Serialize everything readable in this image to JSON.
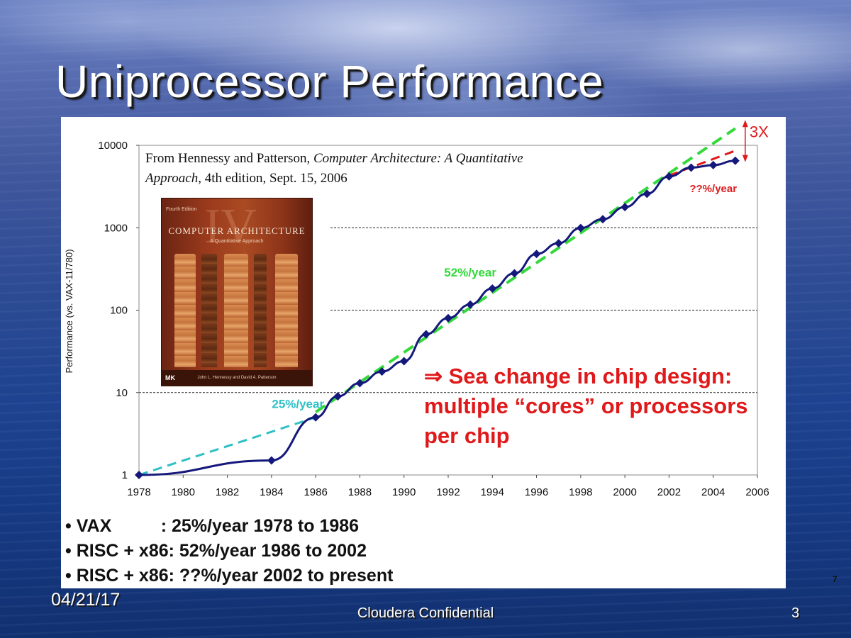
{
  "slide": {
    "title": "Uniprocessor Performance",
    "footer_date": "04/21/17",
    "footer_center": "Cloudera Confidential",
    "slide_number": "3",
    "image_page_number": "7"
  },
  "source_note": {
    "prefix": "From Hennessy and Patterson, ",
    "book_title": "Computer Architecture: A Quantitative Approach",
    "suffix": ", 4th edition, Sept. 15, 2006"
  },
  "book_cover": {
    "edition_label": "Fourth Edition",
    "title": "COMPUTER ARCHITECTURE",
    "subtitle": "A Quantitative Approach",
    "authors": "John L. Hennessy and David A. Patterson",
    "roman_numeral": "IV",
    "publisher_mark": "MK"
  },
  "sea_change": {
    "arrow": "⇒",
    "text": "Sea change in chip design: multiple “cores” or processors per chip"
  },
  "bullets": [
    "• VAX          : 25%/year 1978 to 1986",
    "• RISC + x86: 52%/year 1986 to 2002",
    "• RISC + x86: ??%/year 2002 to present"
  ],
  "colors": {
    "series_line": "#14187a",
    "trend_25": "#2ec0c6",
    "trend_52": "#33d93a",
    "trend_future": "#e0191b",
    "annotation_red": "#e0191b"
  },
  "chart_data": {
    "type": "line",
    "title": "",
    "xlabel": "",
    "ylabel": "Performance (vs. VAX-11/780)",
    "y_scale": "log",
    "xlim": [
      1978,
      2006
    ],
    "ylim": [
      1,
      10000
    ],
    "x_ticks": [
      "1978",
      "1980",
      "1982",
      "1984",
      "1986",
      "1988",
      "1990",
      "1992",
      "1994",
      "1996",
      "1998",
      "2000",
      "2002",
      "2004",
      "2006"
    ],
    "y_ticks": [
      "1",
      "10",
      "100",
      "1000",
      "10000"
    ],
    "gridlines": "dashed at 10, 100 and 1000",
    "series": [
      {
        "name": "",
        "x": [
          1978,
          1984,
          1986,
          1987,
          1988,
          1989,
          1990,
          1991,
          1992,
          1993,
          1994,
          1995,
          1996,
          1997,
          1998,
          1999,
          2000,
          2001,
          2002,
          2003,
          2004,
          2005
        ],
        "y": [
          1,
          1.5,
          5,
          9,
          13,
          18,
          24,
          51,
          80,
          117,
          183,
          280,
          481,
          649,
          993,
          1267,
          1779,
          2584,
          4195,
          5364,
          5764,
          6505
        ]
      }
    ],
    "trend_lines": [
      {
        "label": "25%/year",
        "x": [
          1978,
          1986
        ],
        "y": [
          1,
          5
        ],
        "color": "#2ec0c6"
      },
      {
        "label": "52%/year",
        "x": [
          1986,
          2005
        ],
        "y": [
          5.8,
          16000
        ],
        "color": "#33d93a"
      },
      {
        "label": "??%/year",
        "x": [
          2002,
          2005
        ],
        "y": [
          4300,
          8600
        ],
        "color": "#e0191b"
      }
    ],
    "annotations": [
      {
        "text": "3X",
        "x": 2005,
        "color": "#e0191b"
      }
    ]
  }
}
